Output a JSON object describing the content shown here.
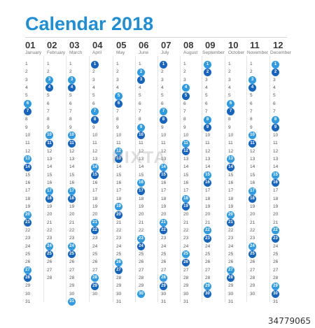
{
  "title": "Calendar 2018",
  "months": [
    {
      "num": "01",
      "name": "January",
      "highlighted": [
        6,
        7,
        13,
        14,
        20,
        21,
        27,
        28
      ]
    },
    {
      "num": "02",
      "name": "February",
      "highlighted": [
        3,
        4,
        10,
        11,
        17,
        18,
        24,
        25
      ]
    },
    {
      "num": "03",
      "name": "March",
      "highlighted": [
        3,
        4,
        10,
        11,
        17,
        18,
        24,
        25,
        31
      ]
    },
    {
      "num": "04",
      "name": "April",
      "highlighted": [
        1,
        7,
        8,
        14,
        15,
        21,
        22,
        28,
        29
      ]
    },
    {
      "num": "05",
      "name": "May",
      "highlighted": [
        5,
        6,
        12,
        13,
        19,
        20,
        26,
        27
      ]
    },
    {
      "num": "06",
      "name": "June",
      "highlighted": [
        2,
        3,
        9,
        10,
        16,
        17,
        23,
        24,
        30
      ]
    },
    {
      "num": "07",
      "name": "July",
      "highlighted": [
        1,
        7,
        8,
        14,
        15,
        21,
        22,
        28,
        29
      ]
    },
    {
      "num": "08",
      "name": "August",
      "highlighted": [
        4,
        5,
        11,
        12,
        18,
        19,
        25,
        26
      ]
    },
    {
      "num": "09",
      "name": "September",
      "highlighted": [
        1,
        2,
        8,
        9,
        15,
        16,
        22,
        23,
        29,
        30
      ]
    },
    {
      "num": "10",
      "name": "October",
      "highlighted": [
        6,
        7,
        13,
        14,
        20,
        21,
        27,
        28
      ]
    },
    {
      "num": "11",
      "name": "November",
      "highlighted": [
        3,
        4,
        10,
        11,
        17,
        18,
        24,
        25
      ]
    },
    {
      "num": "12",
      "name": "December",
      "highlighted": [
        1,
        2,
        8,
        9,
        15,
        16,
        22,
        23,
        29,
        30
      ]
    }
  ],
  "month_lengths": [
    31,
    28,
    31,
    30,
    31,
    30,
    31,
    31,
    30,
    31,
    30,
    31
  ],
  "colors": {
    "title": "#1e8fd6",
    "saturday": "#2e9be3",
    "sunday": "#1565c0"
  },
  "watermark": "PIXTA",
  "stock_id": "34779065"
}
